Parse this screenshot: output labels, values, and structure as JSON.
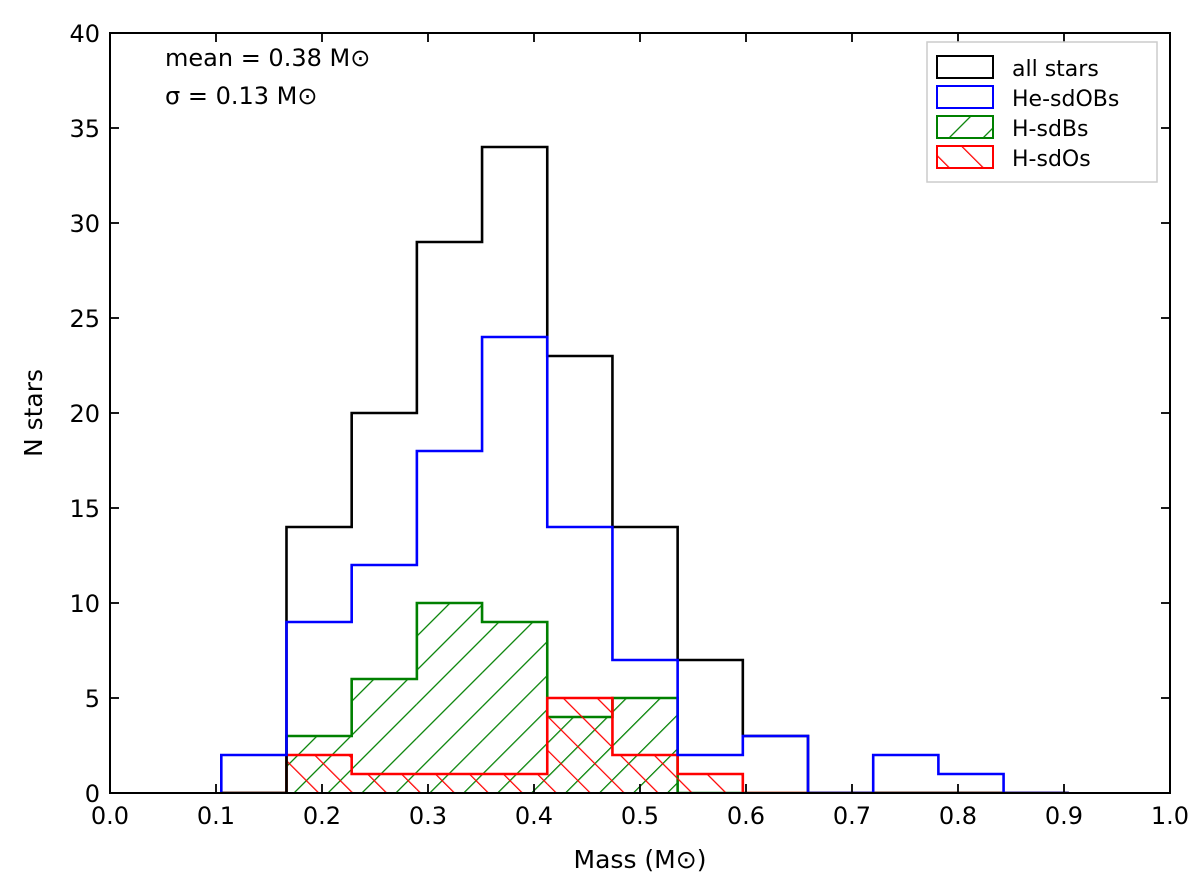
{
  "chart_data": {
    "type": "histogram",
    "xlabel": "Mass (M⊙)",
    "ylabel": "N stars",
    "xlim": [
      0.0,
      1.0
    ],
    "ylim": [
      0,
      40
    ],
    "xticks": [
      "0.0",
      "0.1",
      "0.2",
      "0.3",
      "0.4",
      "0.5",
      "0.6",
      "0.7",
      "0.8",
      "0.9",
      "1.0"
    ],
    "yticks": [
      "0",
      "5",
      "10",
      "15",
      "20",
      "25",
      "30",
      "35",
      "40"
    ],
    "annotations": [
      "mean = 0.38 M⊙",
      "σ = 0.13 M⊙"
    ],
    "legend_position": "top-right",
    "bin_edges": [
      0.105,
      0.1665,
      0.228,
      0.2895,
      0.351,
      0.4125,
      0.474,
      0.5355,
      0.597,
      0.6585,
      0.72,
      0.7815,
      0.843,
      0.9045
    ],
    "series": [
      {
        "name": "all stars",
        "color": "#000000",
        "hatch": "none",
        "values": [
          0,
          14,
          20,
          29,
          34,
          23,
          14,
          7,
          3,
          0,
          0,
          0,
          0
        ]
      },
      {
        "name": "He-sdOBs",
        "color": "#0000ff",
        "hatch": "none",
        "values": [
          2,
          9,
          12,
          18,
          24,
          14,
          7,
          2,
          3,
          0,
          2,
          1,
          0
        ]
      },
      {
        "name": "H-sdBs",
        "color": "#008000",
        "hatch": "backslash",
        "values": [
          0,
          3,
          6,
          10,
          9,
          4,
          5,
          0,
          0,
          0,
          0,
          0,
          0
        ]
      },
      {
        "name": "H-sdOs",
        "color": "#ff0000",
        "hatch": "slash",
        "values": [
          0,
          2,
          1,
          1,
          1,
          5,
          2,
          1,
          0,
          0,
          0,
          0,
          0
        ]
      }
    ]
  }
}
